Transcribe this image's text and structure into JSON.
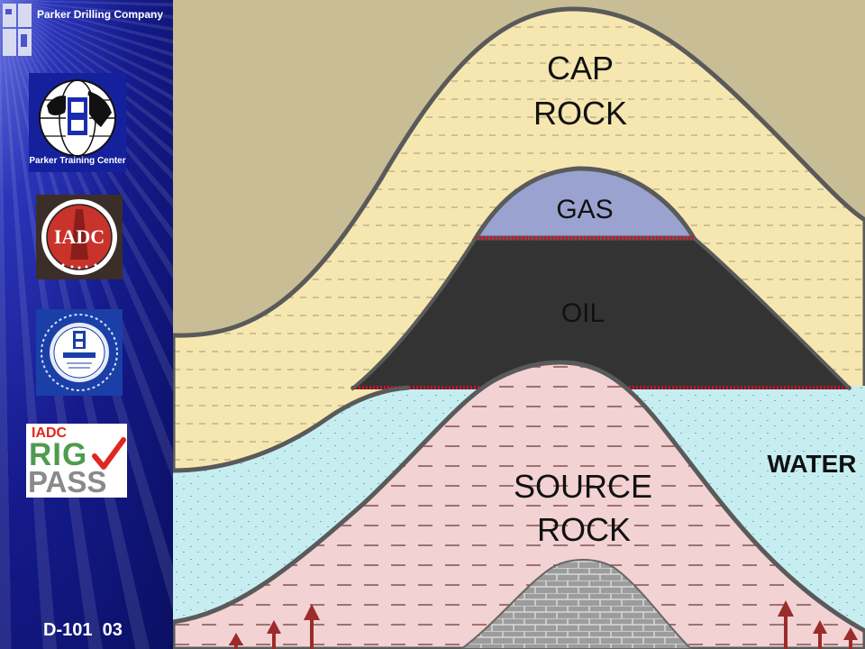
{
  "sidebar": {
    "company_name": "Parker Drilling Company",
    "badges": {
      "training_center_text": "Parker Training Center",
      "iadc_text": "INTERNATIONAL ASSOCIATION OF DRILLING CONTRACTORS",
      "quality_text": "QUALITY ASSURED FIRM",
      "rigpass_top": "IADC",
      "rigpass_rig": "RIG",
      "rigpass_pass": "PASS"
    },
    "slide_code": "D-101  03"
  },
  "diagram": {
    "labels": {
      "cap_rock": [
        "CAP",
        "ROCK"
      ],
      "gas": "GAS",
      "oil": "OIL",
      "water": "WATER",
      "source_rock": [
        "SOURCE",
        "ROCK"
      ]
    },
    "colors": {
      "background": "#c8bd94",
      "cap_rock": "#f6e7b0",
      "gas": "#9aa2cf",
      "oil": "#333333",
      "water": "#c6eef0",
      "source_rock": "#f2d2d2",
      "basement": "#9c9c9c",
      "contact_line": "#d0102a",
      "arrow": "#9b2c2c"
    }
  }
}
